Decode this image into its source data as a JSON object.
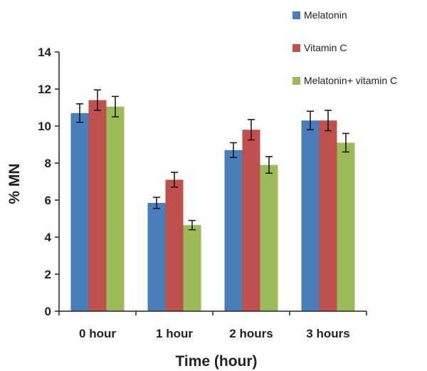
{
  "chart_data": {
    "type": "bar",
    "title": "",
    "xlabel": "Time (hour)",
    "ylabel": "% MN",
    "ylim": [
      0,
      14
    ],
    "yticks": [
      "0",
      "2",
      "4",
      "6",
      "8",
      "10",
      "12",
      "14"
    ],
    "categories": [
      "0 hour",
      "1 hour",
      "2 hours",
      "3 hours"
    ],
    "series": [
      {
        "name": "Melatonin",
        "color": "#4a7ebb",
        "values": [
          10.7,
          5.85,
          8.7,
          10.3
        ],
        "errors": [
          0.5,
          0.3,
          0.4,
          0.5
        ]
      },
      {
        "name": "Vitamin C",
        "color": "#c0504d",
        "values": [
          11.4,
          7.1,
          9.8,
          10.3
        ],
        "errors": [
          0.55,
          0.4,
          0.55,
          0.55
        ]
      },
      {
        "name": "Melatonin+ vitamin C",
        "color": "#9bbb59",
        "values": [
          11.05,
          4.65,
          7.9,
          9.1
        ],
        "errors": [
          0.55,
          0.25,
          0.45,
          0.5
        ]
      }
    ],
    "legend_position": "top-right",
    "grid": false
  }
}
